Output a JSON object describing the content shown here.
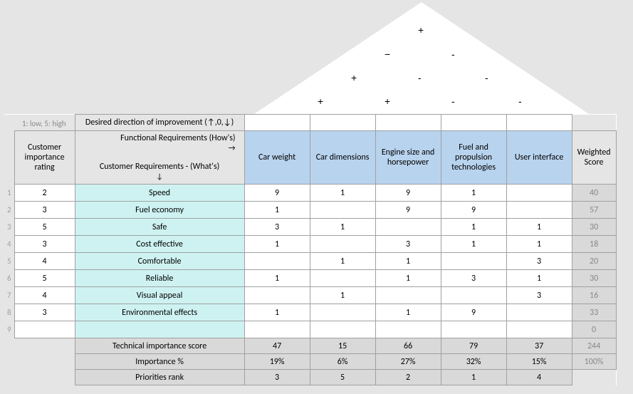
{
  "labels": {
    "scale_note": "1: low, 5: high",
    "direction_row": "Desired direction of improvement (↑,0,↓)",
    "functional_header": "Functional Requirements (How's)\n→",
    "customer_header": "Customer Requirements - (What's)\n↓",
    "importance_rating": "Customer\nimportance\nrating",
    "weighted_score": "Weighted\nScore",
    "tech_score": "Technical importance score",
    "importance_pct": "Importance %",
    "priorities_rank": "Priorities rank"
  },
  "functional_columns": [
    "Car weight",
    "Car dimensions",
    "Engine size and horsepower",
    "Fuel and propulsion technologies",
    "User interface"
  ],
  "customer_rows": [
    {
      "num": "1",
      "rating": "2",
      "name": "Speed",
      "vals": [
        "9",
        "1",
        "9",
        "1",
        ""
      ],
      "ws": "40"
    },
    {
      "num": "2",
      "rating": "3",
      "name": "Fuel economy",
      "vals": [
        "1",
        "",
        "9",
        "9",
        ""
      ],
      "ws": "57"
    },
    {
      "num": "3",
      "rating": "5",
      "name": "Safe",
      "vals": [
        "3",
        "1",
        "",
        "1",
        "1"
      ],
      "ws": "30"
    },
    {
      "num": "4",
      "rating": "3",
      "name": "Cost effective",
      "vals": [
        "1",
        "",
        "3",
        "1",
        "1"
      ],
      "ws": "18"
    },
    {
      "num": "5",
      "rating": "4",
      "name": "Comfortable",
      "vals": [
        "",
        "1",
        "1",
        "",
        "3"
      ],
      "ws": "20"
    },
    {
      "num": "6",
      "rating": "5",
      "name": "Reliable",
      "vals": [
        "1",
        "",
        "1",
        "3",
        "1"
      ],
      "ws": "30"
    },
    {
      "num": "7",
      "rating": "4",
      "name": "Visual appeal",
      "vals": [
        "",
        "1",
        "",
        "",
        "3"
      ],
      "ws": "16"
    },
    {
      "num": "8",
      "rating": "3",
      "name": "Environmental effects",
      "vals": [
        "1",
        "",
        "1",
        "9",
        ""
      ],
      "ws": "33"
    },
    {
      "num": "9",
      "rating": "",
      "name": "",
      "vals": [
        "",
        "",
        "",
        "",
        ""
      ],
      "ws": "0"
    }
  ],
  "footer": {
    "tech_score": [
      "47",
      "15",
      "66",
      "79",
      "37"
    ],
    "tech_total": "244",
    "importance_pct": [
      "19%",
      "6%",
      "27%",
      "32%",
      "15%"
    ],
    "pct_total": "100%",
    "priorities": [
      "3",
      "5",
      "2",
      "1",
      "4"
    ]
  },
  "roof_symbols": [
    {
      "row": 1,
      "col": 1,
      "sym": "+"
    },
    {
      "row": 2,
      "col": 1,
      "sym": "−"
    },
    {
      "row": 2,
      "col": 2,
      "sym": "-"
    },
    {
      "row": 3,
      "col": 1,
      "sym": "+"
    },
    {
      "row": 3,
      "col": 2,
      "sym": "-"
    },
    {
      "row": 3,
      "col": 3,
      "sym": "-"
    },
    {
      "row": 4,
      "col": 1,
      "sym": "+"
    },
    {
      "row": 4,
      "col": 2,
      "sym": "+"
    },
    {
      "row": 4,
      "col": 3,
      "sym": "-"
    },
    {
      "row": 4,
      "col": 4,
      "sym": "-"
    }
  ],
  "colors": {
    "page_bg": "#e5e5e5",
    "cell_bg": "#ffffff",
    "border": "#a0a0a0",
    "blue": "#b8d3ee",
    "cyan": "#cef2f2",
    "gray_score": "#d9d9d9",
    "gray_text": "#888888"
  }
}
